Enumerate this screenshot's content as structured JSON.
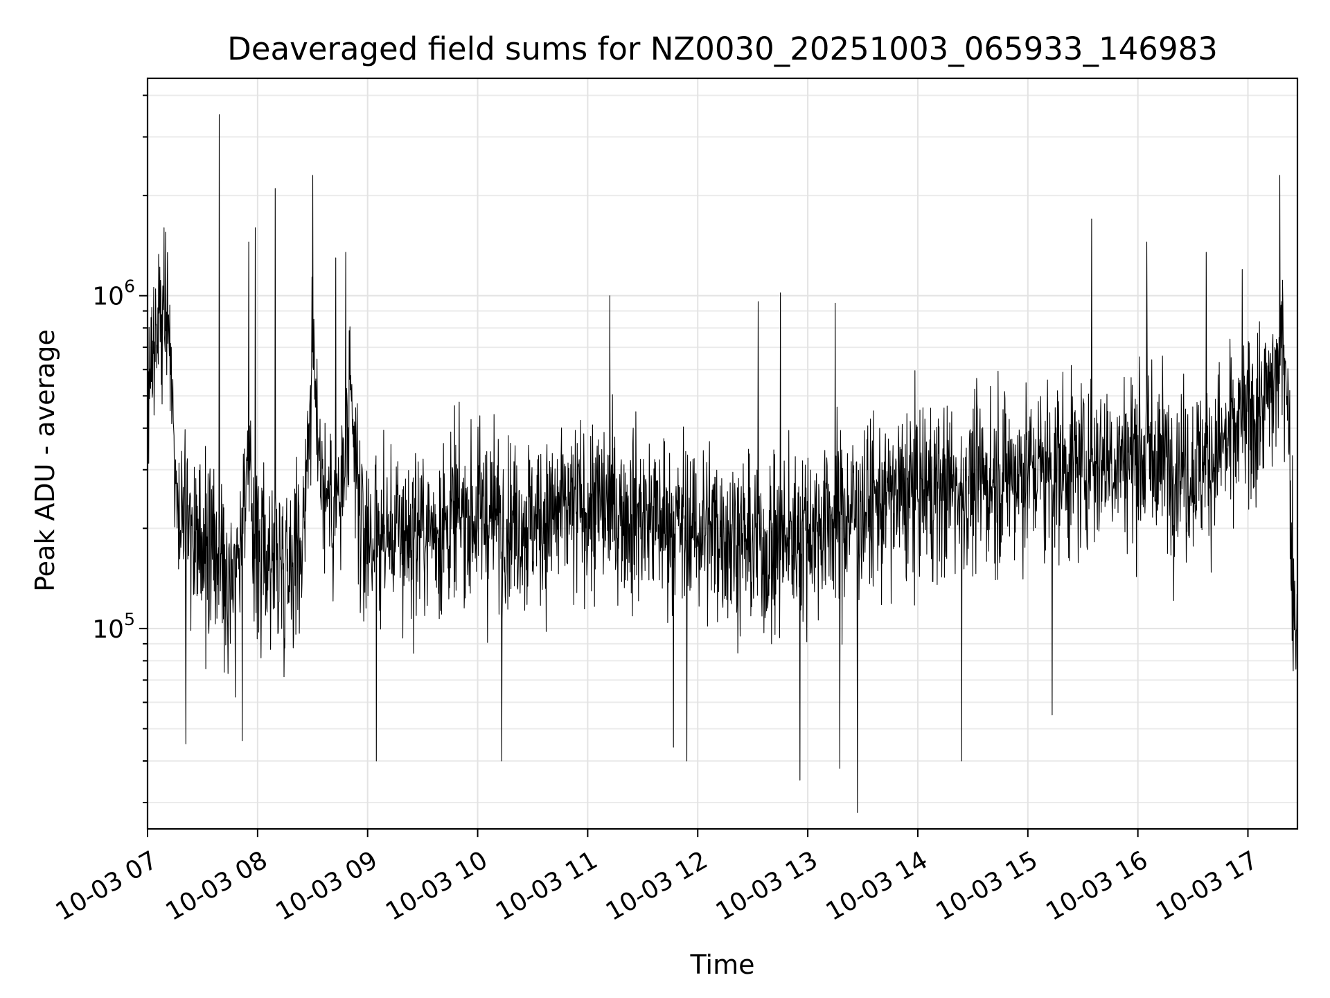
{
  "chart_data": {
    "type": "line",
    "title": "Deaveraged field sums for NZ0030_20251003_065933_146983",
    "xlabel": "Time",
    "ylabel": "Peak ADU - average",
    "y_scale": "log",
    "ylim": [
      25000,
      4500000
    ],
    "x_range_hours": [
      7.0,
      17.45
    ],
    "x_ticks": [
      {
        "value": 7,
        "label": "10-03 07"
      },
      {
        "value": 8,
        "label": "10-03 08"
      },
      {
        "value": 9,
        "label": "10-03 09"
      },
      {
        "value": 10,
        "label": "10-03 10"
      },
      {
        "value": 11,
        "label": "10-03 11"
      },
      {
        "value": 12,
        "label": "10-03 12"
      },
      {
        "value": 13,
        "label": "10-03 13"
      },
      {
        "value": 14,
        "label": "10-03 14"
      },
      {
        "value": 15,
        "label": "10-03 15"
      },
      {
        "value": 16,
        "label": "10-03 16"
      },
      {
        "value": 17,
        "label": "10-03 17"
      }
    ],
    "y_ticks": [
      {
        "value": 100000,
        "base": "10",
        "exp": "5"
      },
      {
        "value": 1000000,
        "base": "10",
        "exp": "6"
      }
    ],
    "grid": true,
    "series_color": "#000000",
    "series": [
      {
        "name": "field sums",
        "baseline": [
          [
            7.0,
            520000
          ],
          [
            7.1,
            900000
          ],
          [
            7.2,
            800000
          ],
          [
            7.27,
            260000
          ],
          [
            7.4,
            180000
          ],
          [
            7.6,
            170000
          ],
          [
            7.8,
            150000
          ],
          [
            7.9,
            300000
          ],
          [
            8.0,
            170000
          ],
          [
            8.2,
            160000
          ],
          [
            8.4,
            180000
          ],
          [
            8.5,
            650000
          ],
          [
            8.6,
            260000
          ],
          [
            8.75,
            230000
          ],
          [
            8.85,
            420000
          ],
          [
            8.95,
            190000
          ],
          [
            9.2,
            190000
          ],
          [
            9.6,
            200000
          ],
          [
            10.0,
            220000
          ],
          [
            10.5,
            210000
          ],
          [
            11.0,
            230000
          ],
          [
            11.5,
            220000
          ],
          [
            11.9,
            200000
          ],
          [
            12.2,
            200000
          ],
          [
            12.6,
            170000
          ],
          [
            13.0,
            200000
          ],
          [
            13.5,
            230000
          ],
          [
            14.0,
            260000
          ],
          [
            14.5,
            270000
          ],
          [
            15.0,
            300000
          ],
          [
            15.5,
            310000
          ],
          [
            16.0,
            340000
          ],
          [
            16.5,
            300000
          ],
          [
            16.9,
            380000
          ],
          [
            17.2,
            500000
          ],
          [
            17.3,
            650000
          ],
          [
            17.35,
            700000
          ],
          [
            17.4,
            160000
          ],
          [
            17.45,
            90000
          ]
        ],
        "spikes": [
          [
            7.65,
            3500000
          ],
          [
            7.15,
            1600000
          ],
          [
            8.16,
            2100000
          ],
          [
            8.5,
            2300000
          ],
          [
            7.98,
            1600000
          ],
          [
            7.92,
            1450000
          ],
          [
            8.8,
            1350000
          ],
          [
            8.71,
            1300000
          ],
          [
            11.2,
            1000000
          ],
          [
            12.75,
            1020000
          ],
          [
            13.25,
            950000
          ],
          [
            12.55,
            960000
          ],
          [
            15.58,
            1700000
          ],
          [
            16.08,
            1450000
          ],
          [
            16.62,
            1350000
          ],
          [
            16.95,
            1200000
          ],
          [
            17.29,
            2300000
          ],
          [
            7.35,
            45000
          ],
          [
            9.08,
            40000
          ],
          [
            10.22,
            40000
          ],
          [
            11.9,
            40000
          ],
          [
            12.93,
            35000
          ],
          [
            13.45,
            28000
          ],
          [
            14.4,
            40000
          ],
          [
            15.22,
            55000
          ],
          [
            13.29,
            38000
          ],
          [
            11.78,
            44000
          ],
          [
            7.86,
            46000
          ]
        ]
      }
    ]
  }
}
